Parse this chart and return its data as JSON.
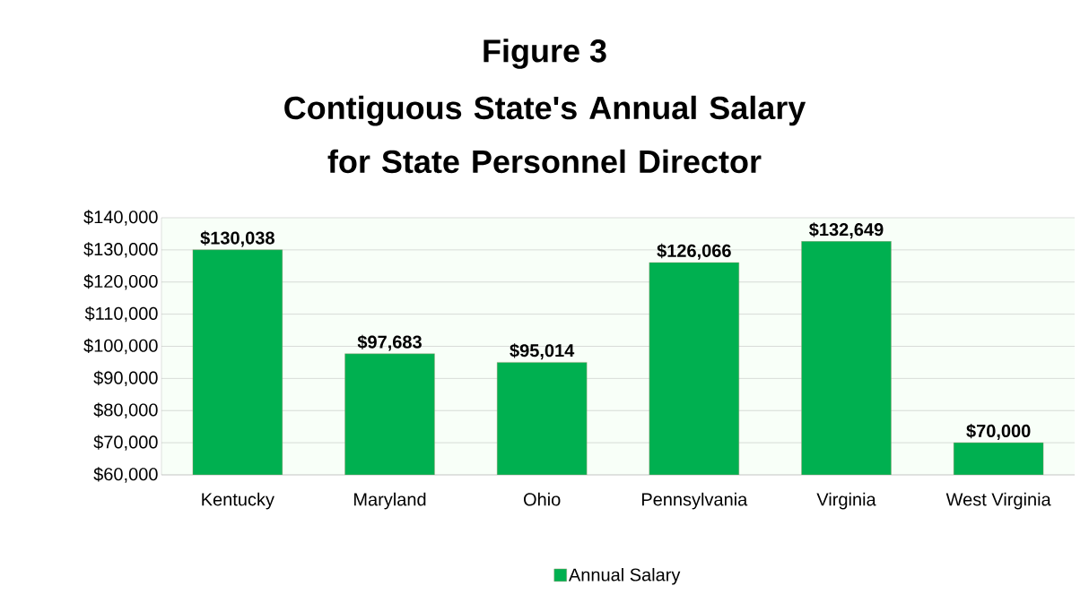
{
  "chart_data": {
    "type": "bar",
    "title": "Figure 3",
    "subtitle": "Contiguous State's Annual Salary for State Personnel Director",
    "categories": [
      "Kentucky",
      "Maryland",
      "Ohio",
      "Pennsylvania",
      "Virginia",
      "West Virginia"
    ],
    "series": [
      {
        "name": "Annual Salary",
        "color": "#00b050",
        "values": [
          130038,
          97683,
          95014,
          126066,
          132649,
          70000
        ],
        "value_labels": [
          "$130,038",
          "$97,683",
          "$95,014",
          "$126,066",
          "$132,649",
          "$70,000"
        ]
      }
    ],
    "ylim": [
      60000,
      140000
    ],
    "yticks": [
      {
        "value": 60000,
        "label": "$60,000"
      },
      {
        "value": 70000,
        "label": "$70,000"
      },
      {
        "value": 80000,
        "label": "$80,000"
      },
      {
        "value": 90000,
        "label": "$90,000"
      },
      {
        "value": 100000,
        "label": "$100,000"
      },
      {
        "value": 110000,
        "label": "$110,000"
      },
      {
        "value": 120000,
        "label": "$120,000"
      },
      {
        "value": 130000,
        "label": "$130,000"
      },
      {
        "value": 140000,
        "label": "$140,000"
      }
    ],
    "grid": "y",
    "legend": "bottom"
  }
}
